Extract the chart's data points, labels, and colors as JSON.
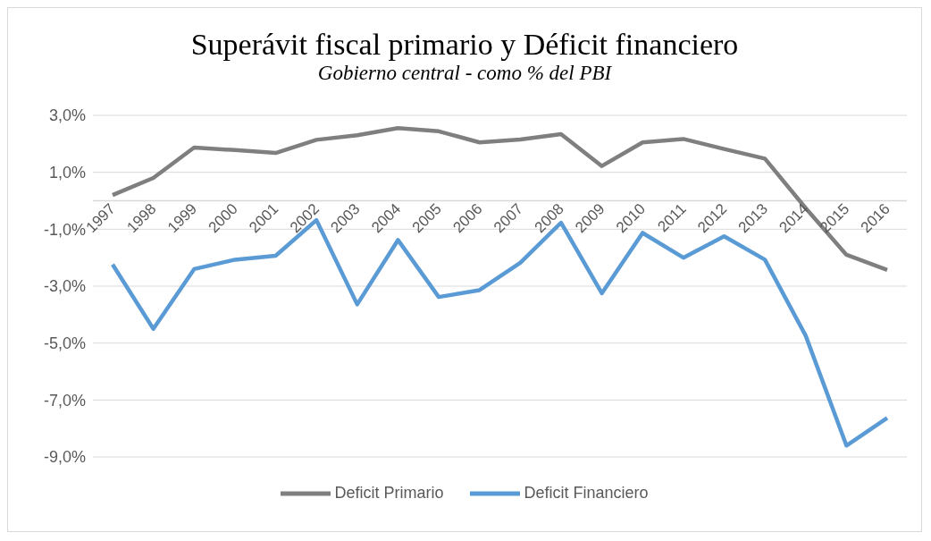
{
  "chart_data": {
    "type": "line",
    "title": "Superávit fiscal primario y Déficit financiero",
    "subtitle": "Gobierno central - como % del PBI",
    "categories": [
      "1997",
      "1998",
      "1999",
      "2000",
      "2001",
      "2002",
      "2003",
      "2004",
      "2005",
      "2006",
      "2007",
      "2008",
      "2009",
      "2010",
      "2011",
      "2012",
      "2013",
      "2014",
      "2015",
      "2016"
    ],
    "series": [
      {
        "name": "Deficit Primario",
        "color": "#7f7f7f",
        "values": [
          0.2,
          0.8,
          1.87,
          1.78,
          1.68,
          2.14,
          2.3,
          2.55,
          2.44,
          2.05,
          2.15,
          2.34,
          1.22,
          2.05,
          2.17,
          1.82,
          1.48,
          -0.26,
          -1.9,
          -2.43
        ]
      },
      {
        "name": "Deficit Financiero",
        "color": "#5b9bd5",
        "values": [
          -2.24,
          -4.5,
          -2.4,
          -2.07,
          -1.93,
          -0.68,
          -3.64,
          -1.38,
          -3.38,
          -3.14,
          -2.18,
          -0.77,
          -3.25,
          -1.13,
          -2.0,
          -1.25,
          -2.07,
          -4.74,
          -8.6,
          -7.63
        ]
      }
    ],
    "ylim": [
      -9,
      3
    ],
    "yticks": [
      {
        "value": 3,
        "label": "3,0%"
      },
      {
        "value": 1,
        "label": "1,0%"
      },
      {
        "value": -1,
        "label": "-1,0%"
      },
      {
        "value": -3,
        "label": "-3,0%"
      },
      {
        "value": -5,
        "label": "-5,0%"
      },
      {
        "value": -7,
        "label": "-7,0%"
      },
      {
        "value": -9,
        "label": "-9,0%"
      }
    ],
    "grid": "y",
    "legend": "bottom",
    "marker": "none",
    "line_style": "solid"
  }
}
